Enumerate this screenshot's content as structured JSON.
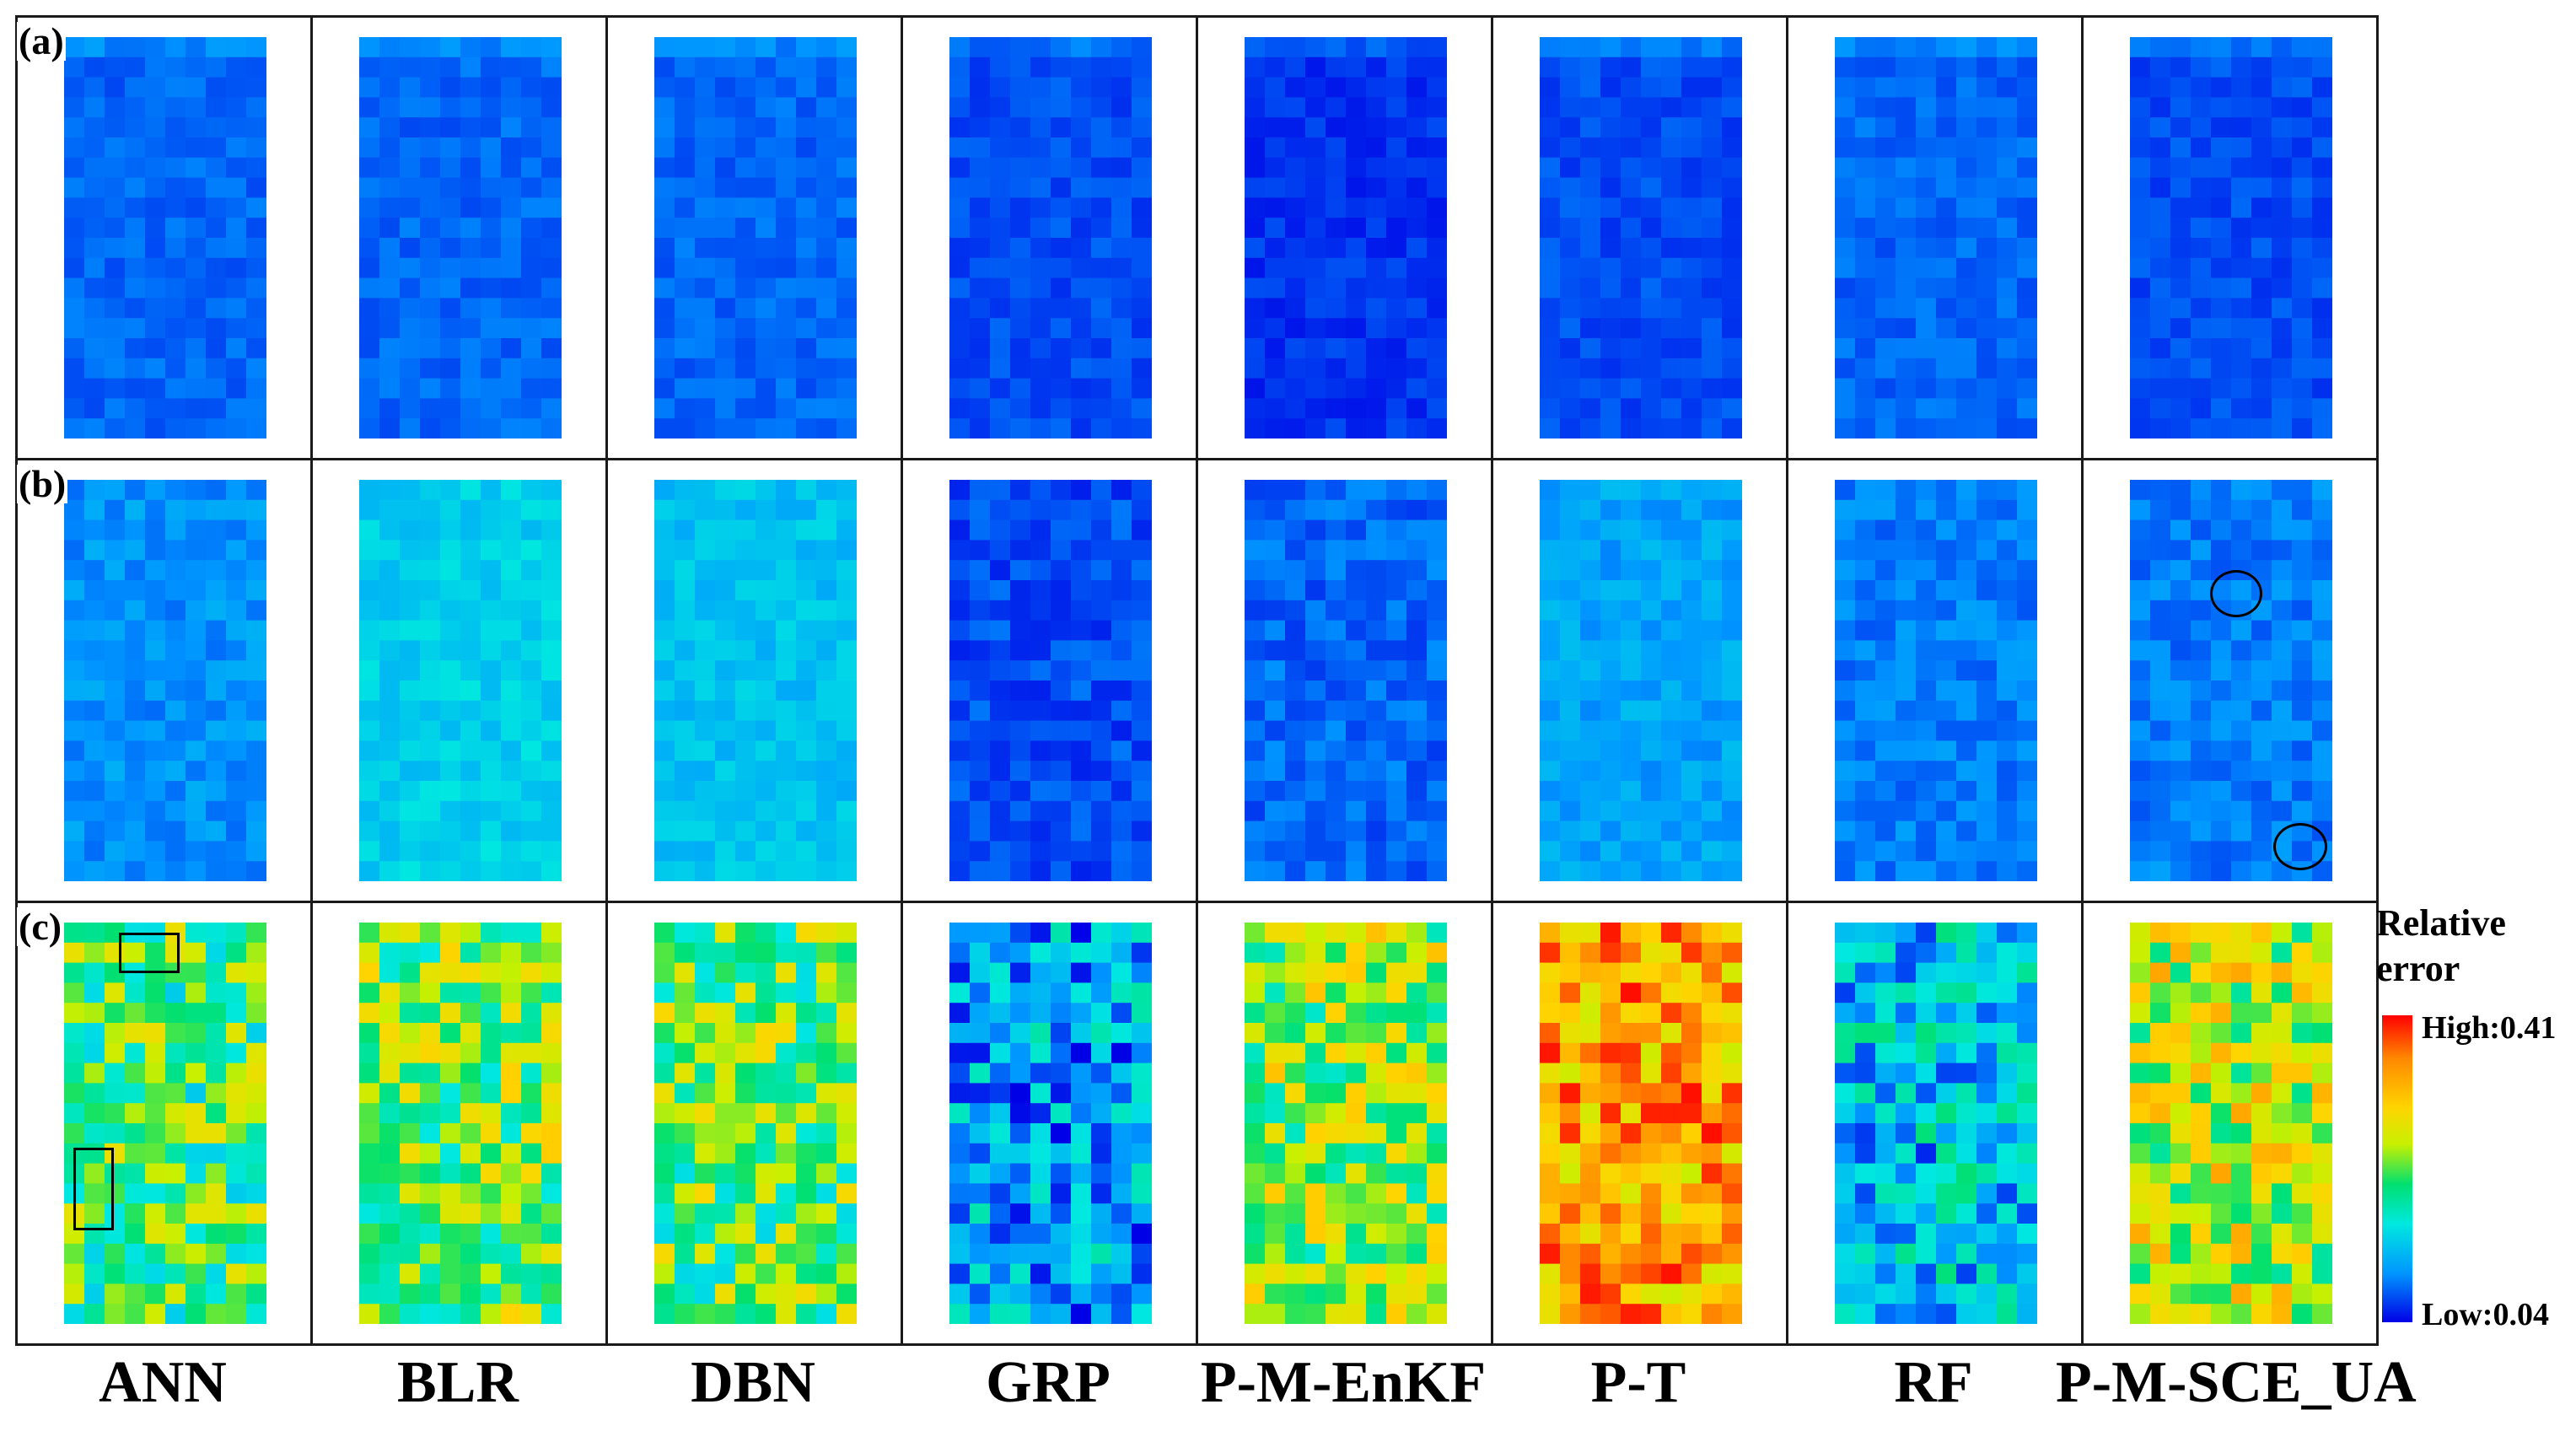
{
  "chart_data": {
    "type": "heatmap",
    "title": "",
    "models": [
      "ANN",
      "BLR",
      "DBN",
      "GRP",
      "P-M-EnKF",
      "P-T",
      "RF",
      "P-M-SCE_UA"
    ],
    "rows": [
      {
        "label": "(a)",
        "values": [
          0.08,
          0.08,
          0.08,
          0.07,
          0.06,
          0.07,
          0.08,
          0.07
        ]
      },
      {
        "label": "(b)",
        "values": [
          0.1,
          0.14,
          0.13,
          0.07,
          0.08,
          0.11,
          0.09,
          0.09
        ]
      },
      {
        "label": "(c)",
        "values": [
          0.21,
          0.23,
          0.22,
          0.11,
          0.24,
          0.33,
          0.13,
          0.26
        ]
      }
    ],
    "colorbar": {
      "title": "Relative error",
      "high_label": "High:0.41",
      "low_label": "Low:0.04",
      "min": 0.04,
      "max": 0.41,
      "colors": [
        "#0000e6",
        "#0096ff",
        "#00e8e0",
        "#00e070",
        "#c8f000",
        "#ffd400",
        "#ff8800",
        "#ff0000"
      ]
    },
    "annotations": {
      "rectangles_in": "(c) ANN",
      "circles_in": "(b) P-M-SCE_UA"
    }
  }
}
